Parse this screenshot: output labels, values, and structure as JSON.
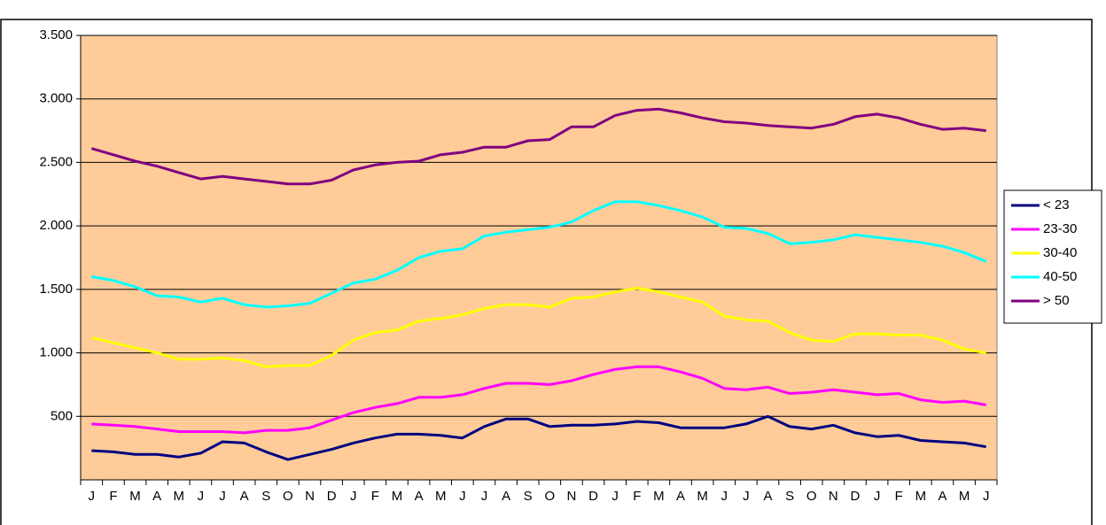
{
  "chart_data": {
    "type": "line",
    "categories": [
      "J",
      "F",
      "M",
      "A",
      "M",
      "J",
      "J",
      "A",
      "S",
      "O",
      "N",
      "D",
      "J",
      "F",
      "M",
      "A",
      "M",
      "J",
      "J",
      "A",
      "S",
      "O",
      "N",
      "D",
      "J",
      "F",
      "M",
      "A",
      "M",
      "J",
      "J",
      "A",
      "S",
      "O",
      "N",
      "D",
      "J",
      "F",
      "M",
      "A",
      "M",
      "J"
    ],
    "series": [
      {
        "name": "< 23",
        "color": "#000080",
        "values": [
          230,
          220,
          200,
          200,
          180,
          210,
          300,
          290,
          220,
          160,
          200,
          240,
          290,
          330,
          360,
          360,
          350,
          330,
          420,
          480,
          480,
          420,
          430,
          430,
          440,
          460,
          450,
          410,
          410,
          410,
          440,
          500,
          420,
          400,
          430,
          370,
          340,
          350,
          310,
          300,
          290,
          260
        ]
      },
      {
        "name": "23-30",
        "color": "#ff00ff",
        "values": [
          440,
          430,
          420,
          400,
          380,
          380,
          380,
          370,
          390,
          390,
          410,
          470,
          530,
          570,
          600,
          650,
          650,
          670,
          720,
          760,
          760,
          750,
          780,
          830,
          870,
          890,
          890,
          850,
          800,
          720,
          710,
          730,
          680,
          690,
          710,
          690,
          670,
          680,
          630,
          610,
          620,
          590
        ]
      },
      {
        "name": "30-40",
        "color": "#ffff00",
        "values": [
          1120,
          1080,
          1040,
          1000,
          950,
          950,
          960,
          940,
          890,
          900,
          900,
          980,
          1100,
          1160,
          1180,
          1250,
          1270,
          1300,
          1350,
          1380,
          1380,
          1360,
          1430,
          1440,
          1480,
          1510,
          1480,
          1440,
          1400,
          1290,
          1260,
          1250,
          1160,
          1100,
          1090,
          1150,
          1150,
          1140,
          1140,
          1100,
          1030,
          1000
        ]
      },
      {
        "name": "40-50",
        "color": "#00ffff",
        "values": [
          1600,
          1570,
          1520,
          1450,
          1440,
          1400,
          1430,
          1380,
          1360,
          1370,
          1390,
          1470,
          1550,
          1580,
          1650,
          1750,
          1800,
          1820,
          1920,
          1950,
          1970,
          1990,
          2030,
          2120,
          2190,
          2190,
          2160,
          2120,
          2070,
          1990,
          1980,
          1940,
          1860,
          1870,
          1890,
          1930,
          1910,
          1890,
          1870,
          1840,
          1790,
          1720
        ]
      },
      {
        "name": "> 50",
        "color": "#800080",
        "values": [
          2610,
          2560,
          2510,
          2470,
          2420,
          2370,
          2390,
          2370,
          2350,
          2330,
          2330,
          2360,
          2440,
          2480,
          2500,
          2510,
          2560,
          2580,
          2620,
          2620,
          2670,
          2680,
          2780,
          2780,
          2870,
          2910,
          2920,
          2890,
          2850,
          2820,
          2810,
          2790,
          2780,
          2770,
          2800,
          2860,
          2880,
          2850,
          2800,
          2760,
          2770,
          2750
        ]
      }
    ],
    "ylim": [
      0,
      3500
    ],
    "yticks": [
      500,
      {
        "value": 1000,
        "label": "1.000"
      },
      {
        "value": 1500,
        "label": "1.500"
      },
      {
        "value": 2000,
        "label": "2.000"
      },
      {
        "value": 2500,
        "label": "2.500"
      },
      {
        "value": 3000,
        "label": "3.000"
      },
      {
        "value": 3500,
        "label": "3.500"
      }
    ],
    "grid": true,
    "plot_background": "#ffcc99",
    "legend": "right"
  }
}
